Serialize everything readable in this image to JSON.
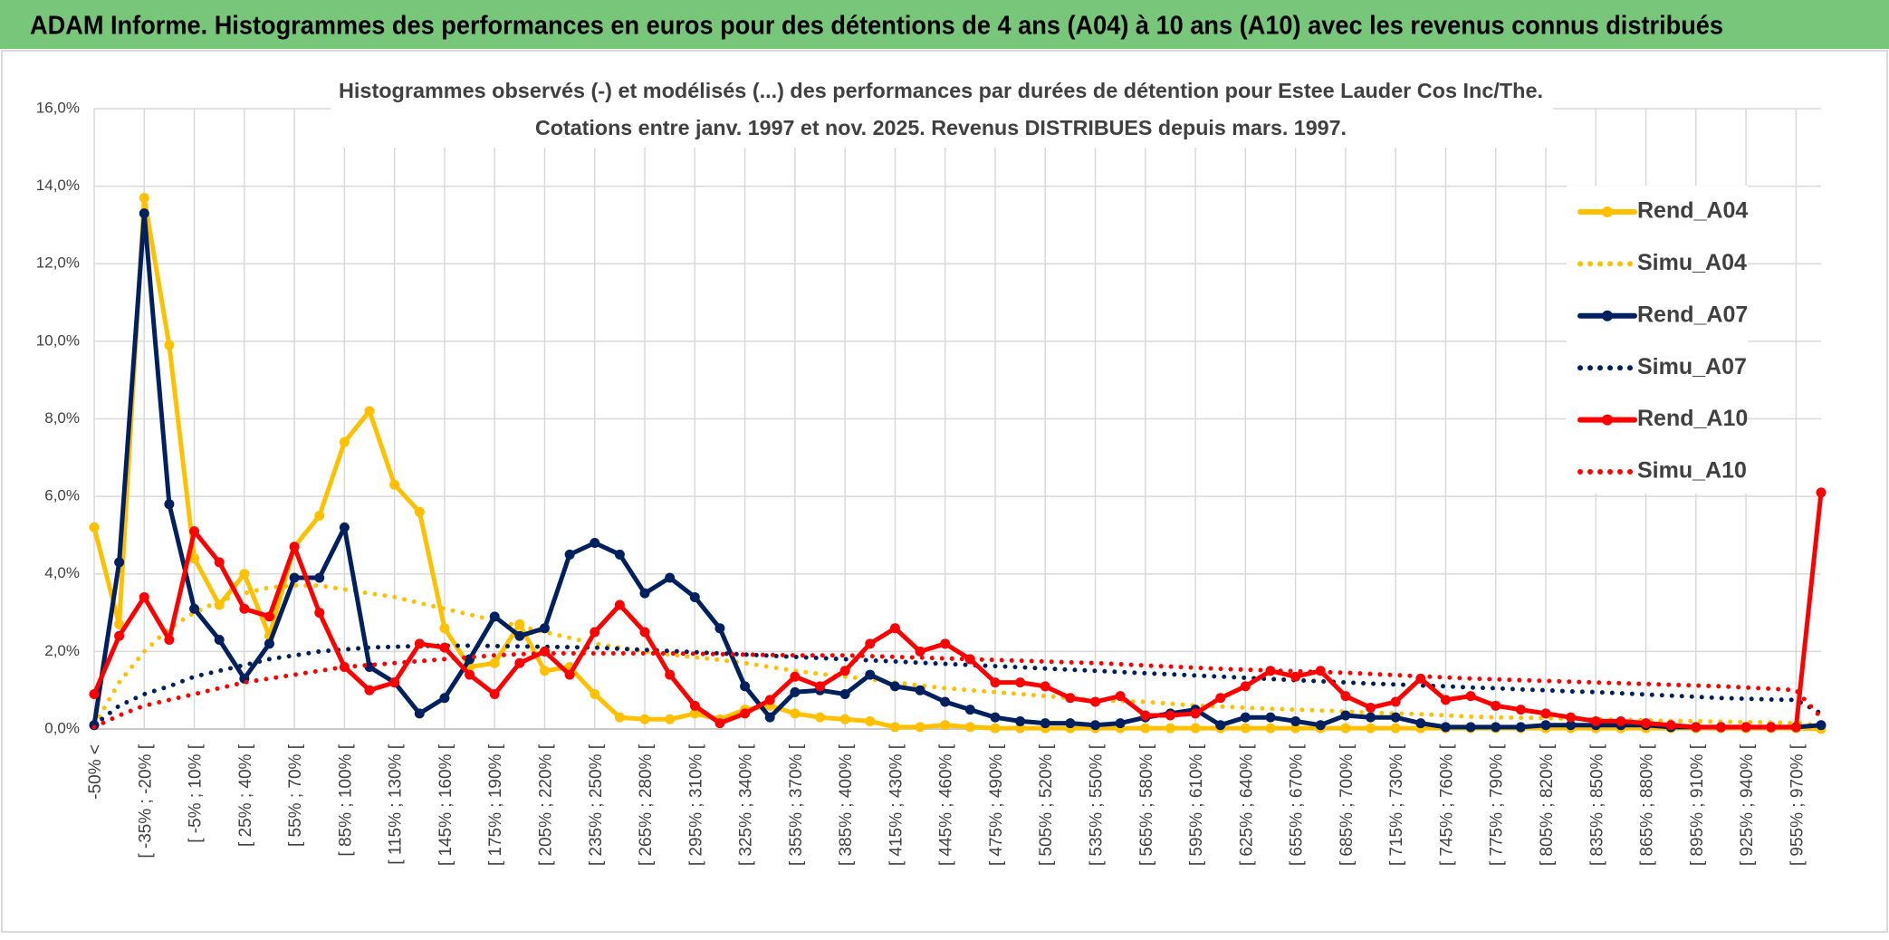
{
  "header": {
    "title": "ADAM Informe. Histogrammes des performances en euros pour des détentions de 4 ans (A04) à 10 ans (A10) avec les revenus connus distribués"
  },
  "chart_data": {
    "type": "line",
    "title": "Histogrammes observés (-) et modélisés (...) des performances par durées de détention pour Estee Lauder Cos Inc/The.",
    "subtitle": "Cotations entre janv. 1997 et nov. 2025. Revenus DISTRIBUES depuis mars. 1997.",
    "categories": [
      "-50% <",
      null,
      "[ -35% ; -20% [",
      null,
      "[ -5% ; 10% [",
      null,
      "[ 25% ; 40% [",
      null,
      "[ 55% ; 70% [",
      null,
      "[ 85% ; 100% [",
      null,
      "[ 115% ; 130% [",
      null,
      "[ 145% ; 160% [",
      null,
      "[ 175% ; 190% [",
      null,
      "[ 205% ; 220% [",
      null,
      "[ 235% ; 250% [",
      null,
      "[ 265% ; 280% [",
      null,
      "[ 295% ; 310% [",
      null,
      "[ 325% ; 340% [",
      null,
      "[ 355% ; 370% [",
      null,
      "[ 385% ; 400% [",
      null,
      "[ 415% ; 430% [",
      null,
      "[ 445% ; 460% [",
      null,
      "[ 475% ; 490% [",
      null,
      "[ 505% ; 520% [",
      null,
      "[ 535% ; 550% [",
      null,
      "[ 565% ; 580% [",
      null,
      "[ 595% ; 610% [",
      null,
      "[ 625% ; 640% [",
      null,
      "[ 655% ; 670% [",
      null,
      "[ 685% ; 700% [",
      null,
      "[ 715% ; 730% [",
      null,
      "[ 745% ; 760% [",
      null,
      "[ 775% ; 790% [",
      null,
      "[ 805% ; 820% [",
      null,
      "[ 835% ; 850% [",
      null,
      "[ 865% ; 880% [",
      null,
      "[ 895% ; 910% [",
      null,
      "[ 925% ; 940% [",
      null,
      "[ 955% ; 970% [",
      null
    ],
    "ylim": [
      0,
      16
    ],
    "yticks": [
      {
        "value": 0,
        "label": "0,0%"
      },
      {
        "value": 2,
        "label": "2,0%"
      },
      {
        "value": 4,
        "label": "4,0%"
      },
      {
        "value": 6,
        "label": "6,0%"
      },
      {
        "value": 8,
        "label": "8,0%"
      },
      {
        "value": 10,
        "label": "10,0%"
      },
      {
        "value": 12,
        "label": "12,0%"
      },
      {
        "value": 14,
        "label": "14,0%"
      },
      {
        "value": 16,
        "label": "16,0%"
      }
    ],
    "grid": true,
    "legend": "right",
    "series": [
      {
        "name": "Rend_A04",
        "color": "#ffc000",
        "style": "solid",
        "markers": true,
        "values": [
          5.2,
          2.7,
          13.7,
          9.9,
          4.4,
          3.2,
          4.0,
          2.4,
          4.7,
          5.5,
          7.4,
          8.2,
          6.3,
          5.6,
          2.6,
          1.6,
          1.7,
          2.7,
          1.5,
          1.6,
          0.9,
          0.3,
          0.25,
          0.25,
          0.4,
          0.25,
          0.5,
          0.6,
          0.4,
          0.3,
          0.25,
          0.2,
          0.05,
          0.05,
          0.1,
          0.05,
          0.02,
          0.02,
          0.02,
          0.02,
          0.02,
          0.02,
          0.02,
          0.02,
          0.02,
          0.02,
          0.02,
          0.02,
          0.02,
          0.02,
          0.02,
          0.02,
          0.02,
          0.02,
          0.02,
          0.02,
          0.02,
          0.02,
          0.02,
          0.02,
          0.02,
          0.02,
          0.02,
          0.02,
          0.02,
          0.02,
          0.02,
          0.02,
          0.02,
          0.0
        ]
      },
      {
        "name": "Simu_A04",
        "color": "#ffc000",
        "style": "dotted",
        "markers": false,
        "values": [
          0.1,
          1.2,
          2.0,
          2.6,
          3.0,
          3.3,
          3.5,
          3.65,
          3.7,
          3.7,
          3.6,
          3.5,
          3.4,
          3.25,
          3.1,
          2.95,
          2.8,
          2.65,
          2.5,
          2.35,
          2.2,
          2.1,
          2.0,
          1.92,
          1.85,
          1.78,
          1.7,
          1.6,
          1.5,
          1.42,
          1.35,
          1.28,
          1.2,
          1.12,
          1.05,
          1.0,
          0.95,
          0.9,
          0.85,
          0.8,
          0.75,
          0.72,
          0.7,
          0.65,
          0.6,
          0.58,
          0.55,
          0.52,
          0.5,
          0.48,
          0.45,
          0.42,
          0.4,
          0.38,
          0.35,
          0.32,
          0.3,
          0.29,
          0.28,
          0.26,
          0.25,
          0.24,
          0.22,
          0.21,
          0.2,
          0.19,
          0.18,
          0.17,
          0.15,
          0.1
        ]
      },
      {
        "name": "Rend_A07",
        "color": "#002060",
        "style": "solid",
        "markers": true,
        "values": [
          0.1,
          4.3,
          13.3,
          5.8,
          3.1,
          2.3,
          1.3,
          2.2,
          3.9,
          3.9,
          5.2,
          1.6,
          1.2,
          0.4,
          0.8,
          1.8,
          2.9,
          2.4,
          2.6,
          4.5,
          4.8,
          4.5,
          3.5,
          3.9,
          3.4,
          2.6,
          1.1,
          0.3,
          0.95,
          1.0,
          0.9,
          1.4,
          1.1,
          1.0,
          0.7,
          0.5,
          0.3,
          0.2,
          0.15,
          0.15,
          0.1,
          0.15,
          0.3,
          0.4,
          0.5,
          0.1,
          0.3,
          0.3,
          0.2,
          0.1,
          0.35,
          0.3,
          0.3,
          0.15,
          0.05,
          0.05,
          0.05,
          0.05,
          0.1,
          0.1,
          0.1,
          0.1,
          0.1,
          0.05,
          0.05,
          0.05,
          0.05,
          0.05,
          0.05,
          0.1
        ]
      },
      {
        "name": "Simu_A07",
        "color": "#002060",
        "style": "dotted",
        "markers": false,
        "values": [
          0.1,
          0.6,
          0.9,
          1.1,
          1.35,
          1.5,
          1.65,
          1.8,
          1.9,
          2.0,
          2.05,
          2.1,
          2.12,
          2.14,
          2.15,
          2.15,
          2.14,
          2.13,
          2.12,
          2.11,
          2.1,
          2.07,
          2.04,
          2.01,
          1.98,
          1.95,
          1.92,
          1.89,
          1.86,
          1.83,
          1.8,
          1.77,
          1.74,
          1.71,
          1.68,
          1.65,
          1.62,
          1.59,
          1.56,
          1.53,
          1.5,
          1.47,
          1.44,
          1.41,
          1.38,
          1.35,
          1.32,
          1.29,
          1.26,
          1.23,
          1.2,
          1.17,
          1.15,
          1.12,
          1.1,
          1.07,
          1.05,
          1.02,
          1.0,
          0.97,
          0.95,
          0.92,
          0.89,
          0.86,
          0.83,
          0.8,
          0.78,
          0.76,
          0.75,
          0.4
        ]
      },
      {
        "name": "Rend_A10",
        "color": "#ff0000",
        "style": "solid",
        "markers": true,
        "values": [
          0.9,
          2.4,
          3.4,
          2.3,
          5.1,
          4.3,
          3.1,
          2.9,
          4.7,
          3.0,
          1.6,
          1.0,
          1.2,
          2.2,
          2.1,
          1.4,
          0.9,
          1.7,
          2.0,
          1.4,
          2.5,
          3.2,
          2.5,
          1.4,
          0.6,
          0.15,
          0.4,
          0.75,
          1.35,
          1.1,
          1.5,
          2.2,
          2.6,
          2.0,
          2.2,
          1.8,
          1.2,
          1.2,
          1.1,
          0.8,
          0.7,
          0.85,
          0.35,
          0.35,
          0.4,
          0.8,
          1.1,
          1.5,
          1.35,
          1.5,
          0.85,
          0.55,
          0.7,
          1.3,
          0.75,
          0.85,
          0.6,
          0.5,
          0.4,
          0.3,
          0.2,
          0.2,
          0.15,
          0.1,
          0.05,
          0.05,
          0.05,
          0.05,
          0.05,
          6.1
        ]
      },
      {
        "name": "Simu_A10",
        "color": "#ff0000",
        "style": "dotted",
        "markers": false,
        "values": [
          0.05,
          0.35,
          0.6,
          0.75,
          0.9,
          1.05,
          1.2,
          1.3,
          1.4,
          1.5,
          1.6,
          1.65,
          1.7,
          1.75,
          1.8,
          1.85,
          1.9,
          1.93,
          1.95,
          1.95,
          1.95,
          1.95,
          1.95,
          1.95,
          1.94,
          1.93,
          1.92,
          1.91,
          1.9,
          1.9,
          1.9,
          1.88,
          1.86,
          1.84,
          1.82,
          1.8,
          1.78,
          1.76,
          1.74,
          1.72,
          1.7,
          1.67,
          1.64,
          1.61,
          1.58,
          1.55,
          1.53,
          1.51,
          1.49,
          1.47,
          1.45,
          1.42,
          1.39,
          1.36,
          1.33,
          1.3,
          1.28,
          1.26,
          1.24,
          1.22,
          1.2,
          1.18,
          1.16,
          1.14,
          1.12,
          1.1,
          1.07,
          1.04,
          1.0,
          0.3
        ]
      }
    ]
  }
}
